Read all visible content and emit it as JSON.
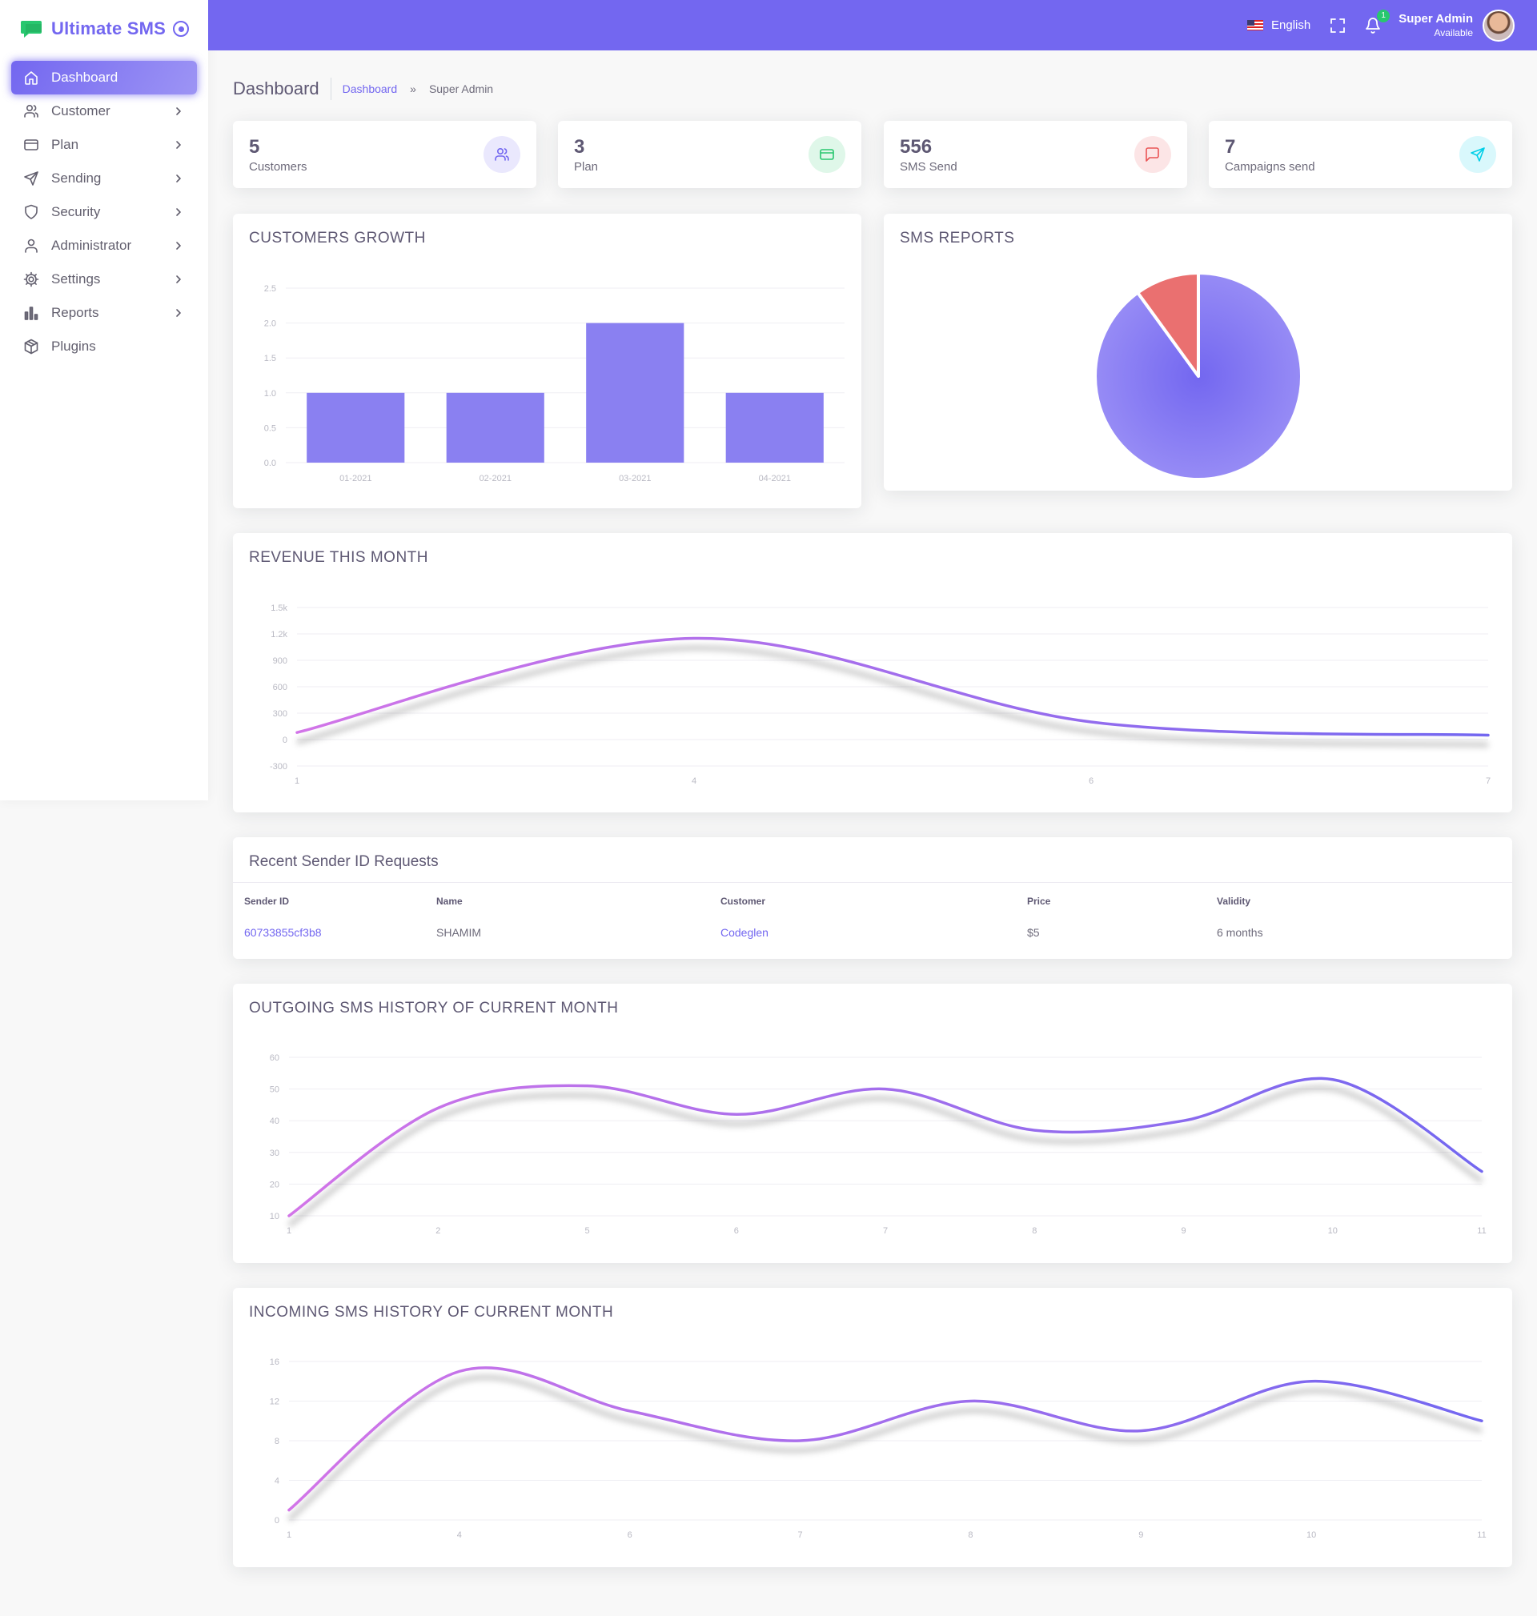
{
  "brand": {
    "name": "Ultimate SMS"
  },
  "sidebar": {
    "items": [
      {
        "label": "Dashboard",
        "icon": "home-icon",
        "active": true,
        "chevron": false
      },
      {
        "label": "Customer",
        "icon": "users-icon",
        "active": false,
        "chevron": true
      },
      {
        "label": "Plan",
        "icon": "credit-card-icon",
        "active": false,
        "chevron": true
      },
      {
        "label": "Sending",
        "icon": "send-icon",
        "active": false,
        "chevron": true
      },
      {
        "label": "Security",
        "icon": "shield-icon",
        "active": false,
        "chevron": true
      },
      {
        "label": "Administrator",
        "icon": "user-icon",
        "active": false,
        "chevron": true
      },
      {
        "label": "Settings",
        "icon": "gear-icon",
        "active": false,
        "chevron": true
      },
      {
        "label": "Reports",
        "icon": "bar-chart-icon",
        "active": false,
        "chevron": true
      },
      {
        "label": "Plugins",
        "icon": "package-icon",
        "active": false,
        "chevron": false
      }
    ]
  },
  "topbar": {
    "language": "English",
    "notification_count": "1",
    "user_name": "Super Admin",
    "user_status": "Available"
  },
  "page": {
    "title": "Dashboard",
    "breadcrumb_link": "Dashboard",
    "breadcrumb_sep": "»",
    "breadcrumb_current": "Super Admin"
  },
  "stats": [
    {
      "value": "5",
      "label": "Customers",
      "icon": "users-icon",
      "color": "#7367f0",
      "bg": "#eae8fd"
    },
    {
      "value": "3",
      "label": "Plan",
      "icon": "credit-card-icon",
      "color": "#28c76f",
      "bg": "#dff7e9"
    },
    {
      "value": "556",
      "label": "SMS Send",
      "icon": "message-icon",
      "color": "#ea5455",
      "bg": "#fce5e6"
    },
    {
      "value": "7",
      "label": "Campaigns send",
      "icon": "send-icon",
      "color": "#00cfe8",
      "bg": "#d9f8fc"
    }
  ],
  "sender_table": {
    "title": "Recent Sender ID Requests",
    "headers": [
      "Sender ID",
      "Name",
      "Customer",
      "Price",
      "Validity"
    ],
    "rows": [
      [
        "60733855cf3b8",
        "SHAMIM",
        "Codeglen",
        "$5",
        "6 months"
      ]
    ]
  },
  "colors": {
    "accent": "#7367f0",
    "pie_secondary": "#ea7070",
    "line_start": "#d275e8"
  },
  "chart_data": [
    {
      "id": "customers-growth",
      "type": "bar",
      "title": "CUSTOMERS GROWTH",
      "categories": [
        "01-2021",
        "02-2021",
        "03-2021",
        "04-2021"
      ],
      "values": [
        1,
        1,
        2,
        1
      ],
      "ylim": [
        0,
        2.5
      ],
      "yticks": [
        "0.0",
        "0.5",
        "1.0",
        "1.5",
        "2.0",
        "2.5"
      ],
      "grid": true
    },
    {
      "id": "sms-reports",
      "type": "pie",
      "title": "SMS REPORTS",
      "values": [
        90,
        10
      ]
    },
    {
      "id": "revenue",
      "type": "line",
      "title": "REVENUE THIS MONTH",
      "x": [
        "1",
        "4",
        "6",
        "7"
      ],
      "values": [
        80,
        1150,
        200,
        50
      ],
      "ylim": [
        -300,
        1500
      ],
      "yticks": [
        "-300",
        "0",
        "300",
        "600",
        "900",
        "1.2k",
        "1.5k"
      ],
      "grid": true
    },
    {
      "id": "outgoing",
      "type": "line",
      "title": "OUTGOING SMS HISTORY OF CURRENT MONTH",
      "x": [
        "1",
        "2",
        "5",
        "6",
        "7",
        "8",
        "9",
        "10",
        "11"
      ],
      "values": [
        10,
        44,
        51,
        42,
        50,
        37,
        40,
        53,
        24
      ],
      "ylim": [
        10,
        60
      ],
      "yticks": [
        "10",
        "20",
        "30",
        "40",
        "50",
        "60"
      ],
      "grid": true
    },
    {
      "id": "incoming",
      "type": "line",
      "title": "INCOMING SMS HISTORY OF CURRENT MONTH",
      "x": [
        "1",
        "4",
        "6",
        "7",
        "8",
        "9",
        "10",
        "11"
      ],
      "values": [
        1,
        15,
        11,
        8,
        12,
        9,
        14,
        10
      ],
      "ylim": [
        0,
        16
      ],
      "yticks": [
        "0",
        "4",
        "8",
        "12",
        "16"
      ],
      "grid": true
    }
  ]
}
